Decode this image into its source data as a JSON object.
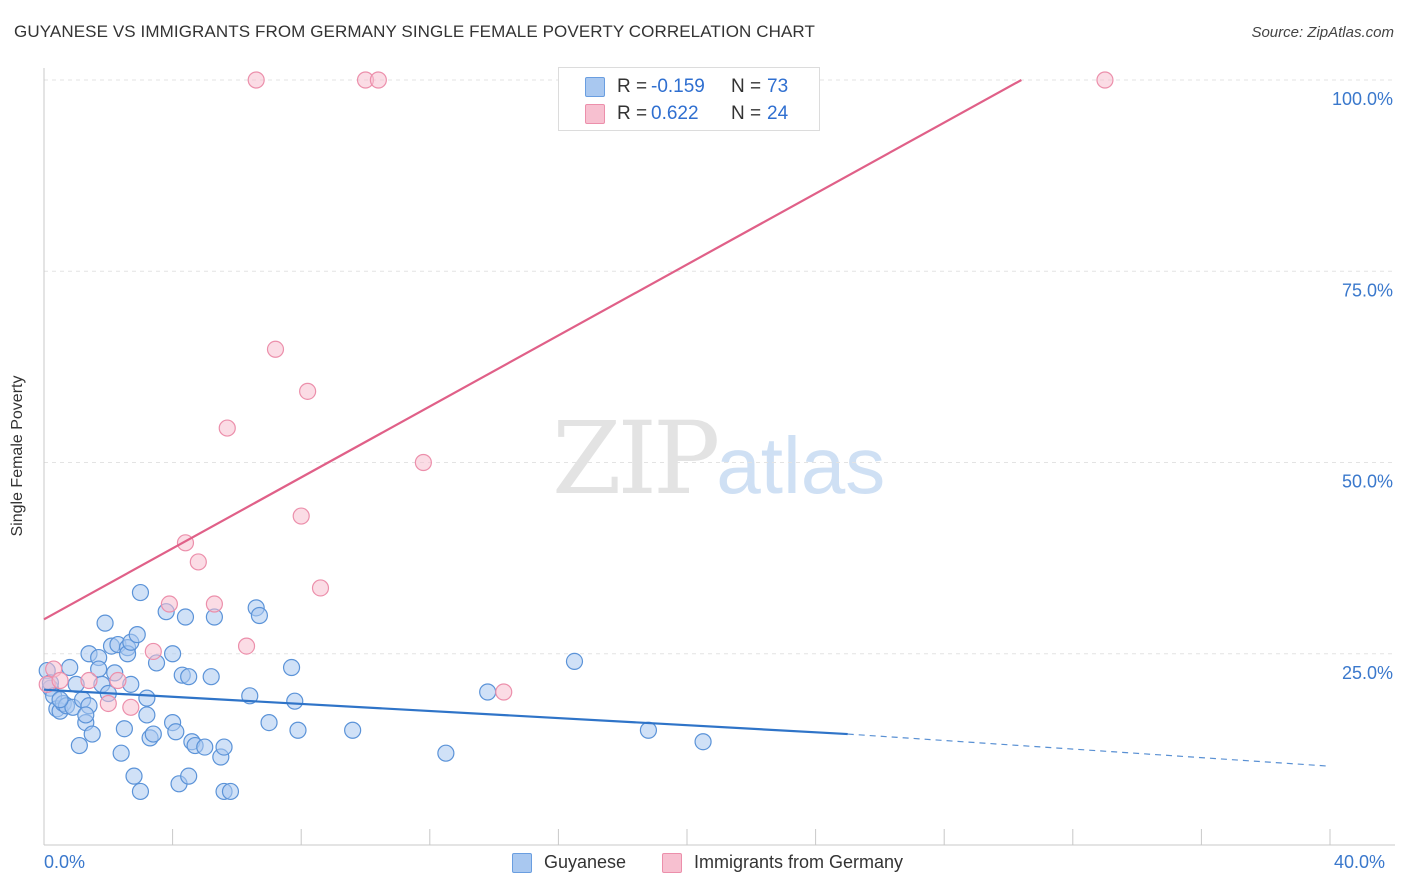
{
  "title": "GUYANESE VS IMMIGRANTS FROM GERMANY SINGLE FEMALE POVERTY CORRELATION CHART",
  "source": "Source: ZipAtlas.com",
  "watermark": {
    "zip": "ZIP",
    "atlas": "atlas"
  },
  "legend_top": {
    "rows": [
      {
        "r_label": "R =",
        "r_value": "-0.159",
        "n_label": "N =",
        "n_value": "73",
        "color": "#a9c8f0",
        "border": "#6a9ee0"
      },
      {
        "r_label": "R =",
        "r_value": "0.622",
        "n_label": "N =",
        "n_value": "24",
        "color": "#f7c0d0",
        "border": "#ec8fab"
      }
    ]
  },
  "chart_data": {
    "type": "scatter",
    "title": "GUYANESE VS IMMIGRANTS FROM GERMANY SINGLE FEMALE POVERTY CORRELATION CHART",
    "xlabel": "",
    "ylabel": "Single Female Poverty",
    "xlim": [
      0,
      40
    ],
    "ylim": [
      0,
      100
    ],
    "x_tick_labels": [
      "0.0%",
      "40.0%"
    ],
    "y_ticks": [
      25,
      50,
      75,
      100
    ],
    "y_tick_labels": [
      "25.0%",
      "50.0%",
      "75.0%",
      "100.0%"
    ],
    "grid": true,
    "legend_position": "bottom",
    "series": [
      {
        "name": "Guyanese",
        "color": "#a9c8f0",
        "stroke": "#5b93d8",
        "line_color": "#2f74c8",
        "trend": {
          "x0": 0,
          "y0": 20.3,
          "x1": 25,
          "y1": 14.5,
          "dashed_to_x": 40,
          "dashed_to_y": 10.3
        },
        "points": [
          [
            0.1,
            22.8
          ],
          [
            0.2,
            20.5
          ],
          [
            0.2,
            21.2
          ],
          [
            0.3,
            19.5
          ],
          [
            0.4,
            17.8
          ],
          [
            0.5,
            17.5
          ],
          [
            0.6,
            18.5
          ],
          [
            0.7,
            18.2
          ],
          [
            0.8,
            23.2
          ],
          [
            0.9,
            18.0
          ],
          [
            1.0,
            21.0
          ],
          [
            1.1,
            13.0
          ],
          [
            1.2,
            19.0
          ],
          [
            1.3,
            16.0
          ],
          [
            1.4,
            18.2
          ],
          [
            1.4,
            25.0
          ],
          [
            1.5,
            14.5
          ],
          [
            1.7,
            24.5
          ],
          [
            1.7,
            23.0
          ],
          [
            1.8,
            21.0
          ],
          [
            1.9,
            29.0
          ],
          [
            2.0,
            19.8
          ],
          [
            2.1,
            26.0
          ],
          [
            2.2,
            22.5
          ],
          [
            2.3,
            26.2
          ],
          [
            2.4,
            12.0
          ],
          [
            2.5,
            15.2
          ],
          [
            2.6,
            25.8
          ],
          [
            2.6,
            25.0
          ],
          [
            2.7,
            21.0
          ],
          [
            2.7,
            26.5
          ],
          [
            2.8,
            9.0
          ],
          [
            2.9,
            27.5
          ],
          [
            3.0,
            33.0
          ],
          [
            3.0,
            7.0
          ],
          [
            3.2,
            17.0
          ],
          [
            3.2,
            19.2
          ],
          [
            3.3,
            14.0
          ],
          [
            3.4,
            14.5
          ],
          [
            3.5,
            23.8
          ],
          [
            3.8,
            30.5
          ],
          [
            4.0,
            16.0
          ],
          [
            4.0,
            25.0
          ],
          [
            4.1,
            14.8
          ],
          [
            4.2,
            8.0
          ],
          [
            4.3,
            22.2
          ],
          [
            4.4,
            29.8
          ],
          [
            4.5,
            22.0
          ],
          [
            4.5,
            9.0
          ],
          [
            4.6,
            13.5
          ],
          [
            4.7,
            13.0
          ],
          [
            5.0,
            12.8
          ],
          [
            5.2,
            22.0
          ],
          [
            5.3,
            29.8
          ],
          [
            5.5,
            11.5
          ],
          [
            5.6,
            7.0
          ],
          [
            5.6,
            12.8
          ],
          [
            5.8,
            7.0
          ],
          [
            6.4,
            19.5
          ],
          [
            6.6,
            31.0
          ],
          [
            6.7,
            30.0
          ],
          [
            7.0,
            16.0
          ],
          [
            7.7,
            23.2
          ],
          [
            7.8,
            18.8
          ],
          [
            7.9,
            15.0
          ],
          [
            9.6,
            15.0
          ],
          [
            12.5,
            12.0
          ],
          [
            13.8,
            20.0
          ],
          [
            16.5,
            24.0
          ],
          [
            18.8,
            15.0
          ],
          [
            20.5,
            13.5
          ],
          [
            0.5,
            19.0
          ],
          [
            1.3,
            17.0
          ]
        ]
      },
      {
        "name": "Immigrants from Germany",
        "color": "#f7c0d0",
        "stroke": "#ec8fab",
        "line_color": "#e06088",
        "trend": {
          "x0": 0,
          "y0": 29.5,
          "x1": 30.4,
          "y1": 100
        },
        "points": [
          [
            0.1,
            21.0
          ],
          [
            0.3,
            23.0
          ],
          [
            0.5,
            21.5
          ],
          [
            1.4,
            21.5
          ],
          [
            2.0,
            18.5
          ],
          [
            2.3,
            21.5
          ],
          [
            2.7,
            18.0
          ],
          [
            3.4,
            25.3
          ],
          [
            3.9,
            31.5
          ],
          [
            4.4,
            39.5
          ],
          [
            4.8,
            37.0
          ],
          [
            5.3,
            31.5
          ],
          [
            5.7,
            54.5
          ],
          [
            6.3,
            26.0
          ],
          [
            6.6,
            100.0
          ],
          [
            7.2,
            64.8
          ],
          [
            8.0,
            43.0
          ],
          [
            8.2,
            59.3
          ],
          [
            8.6,
            33.6
          ],
          [
            10.0,
            100.0
          ],
          [
            10.4,
            100.0
          ],
          [
            11.8,
            50.0
          ],
          [
            14.3,
            20.0
          ],
          [
            33.0,
            100.0
          ]
        ]
      }
    ]
  }
}
